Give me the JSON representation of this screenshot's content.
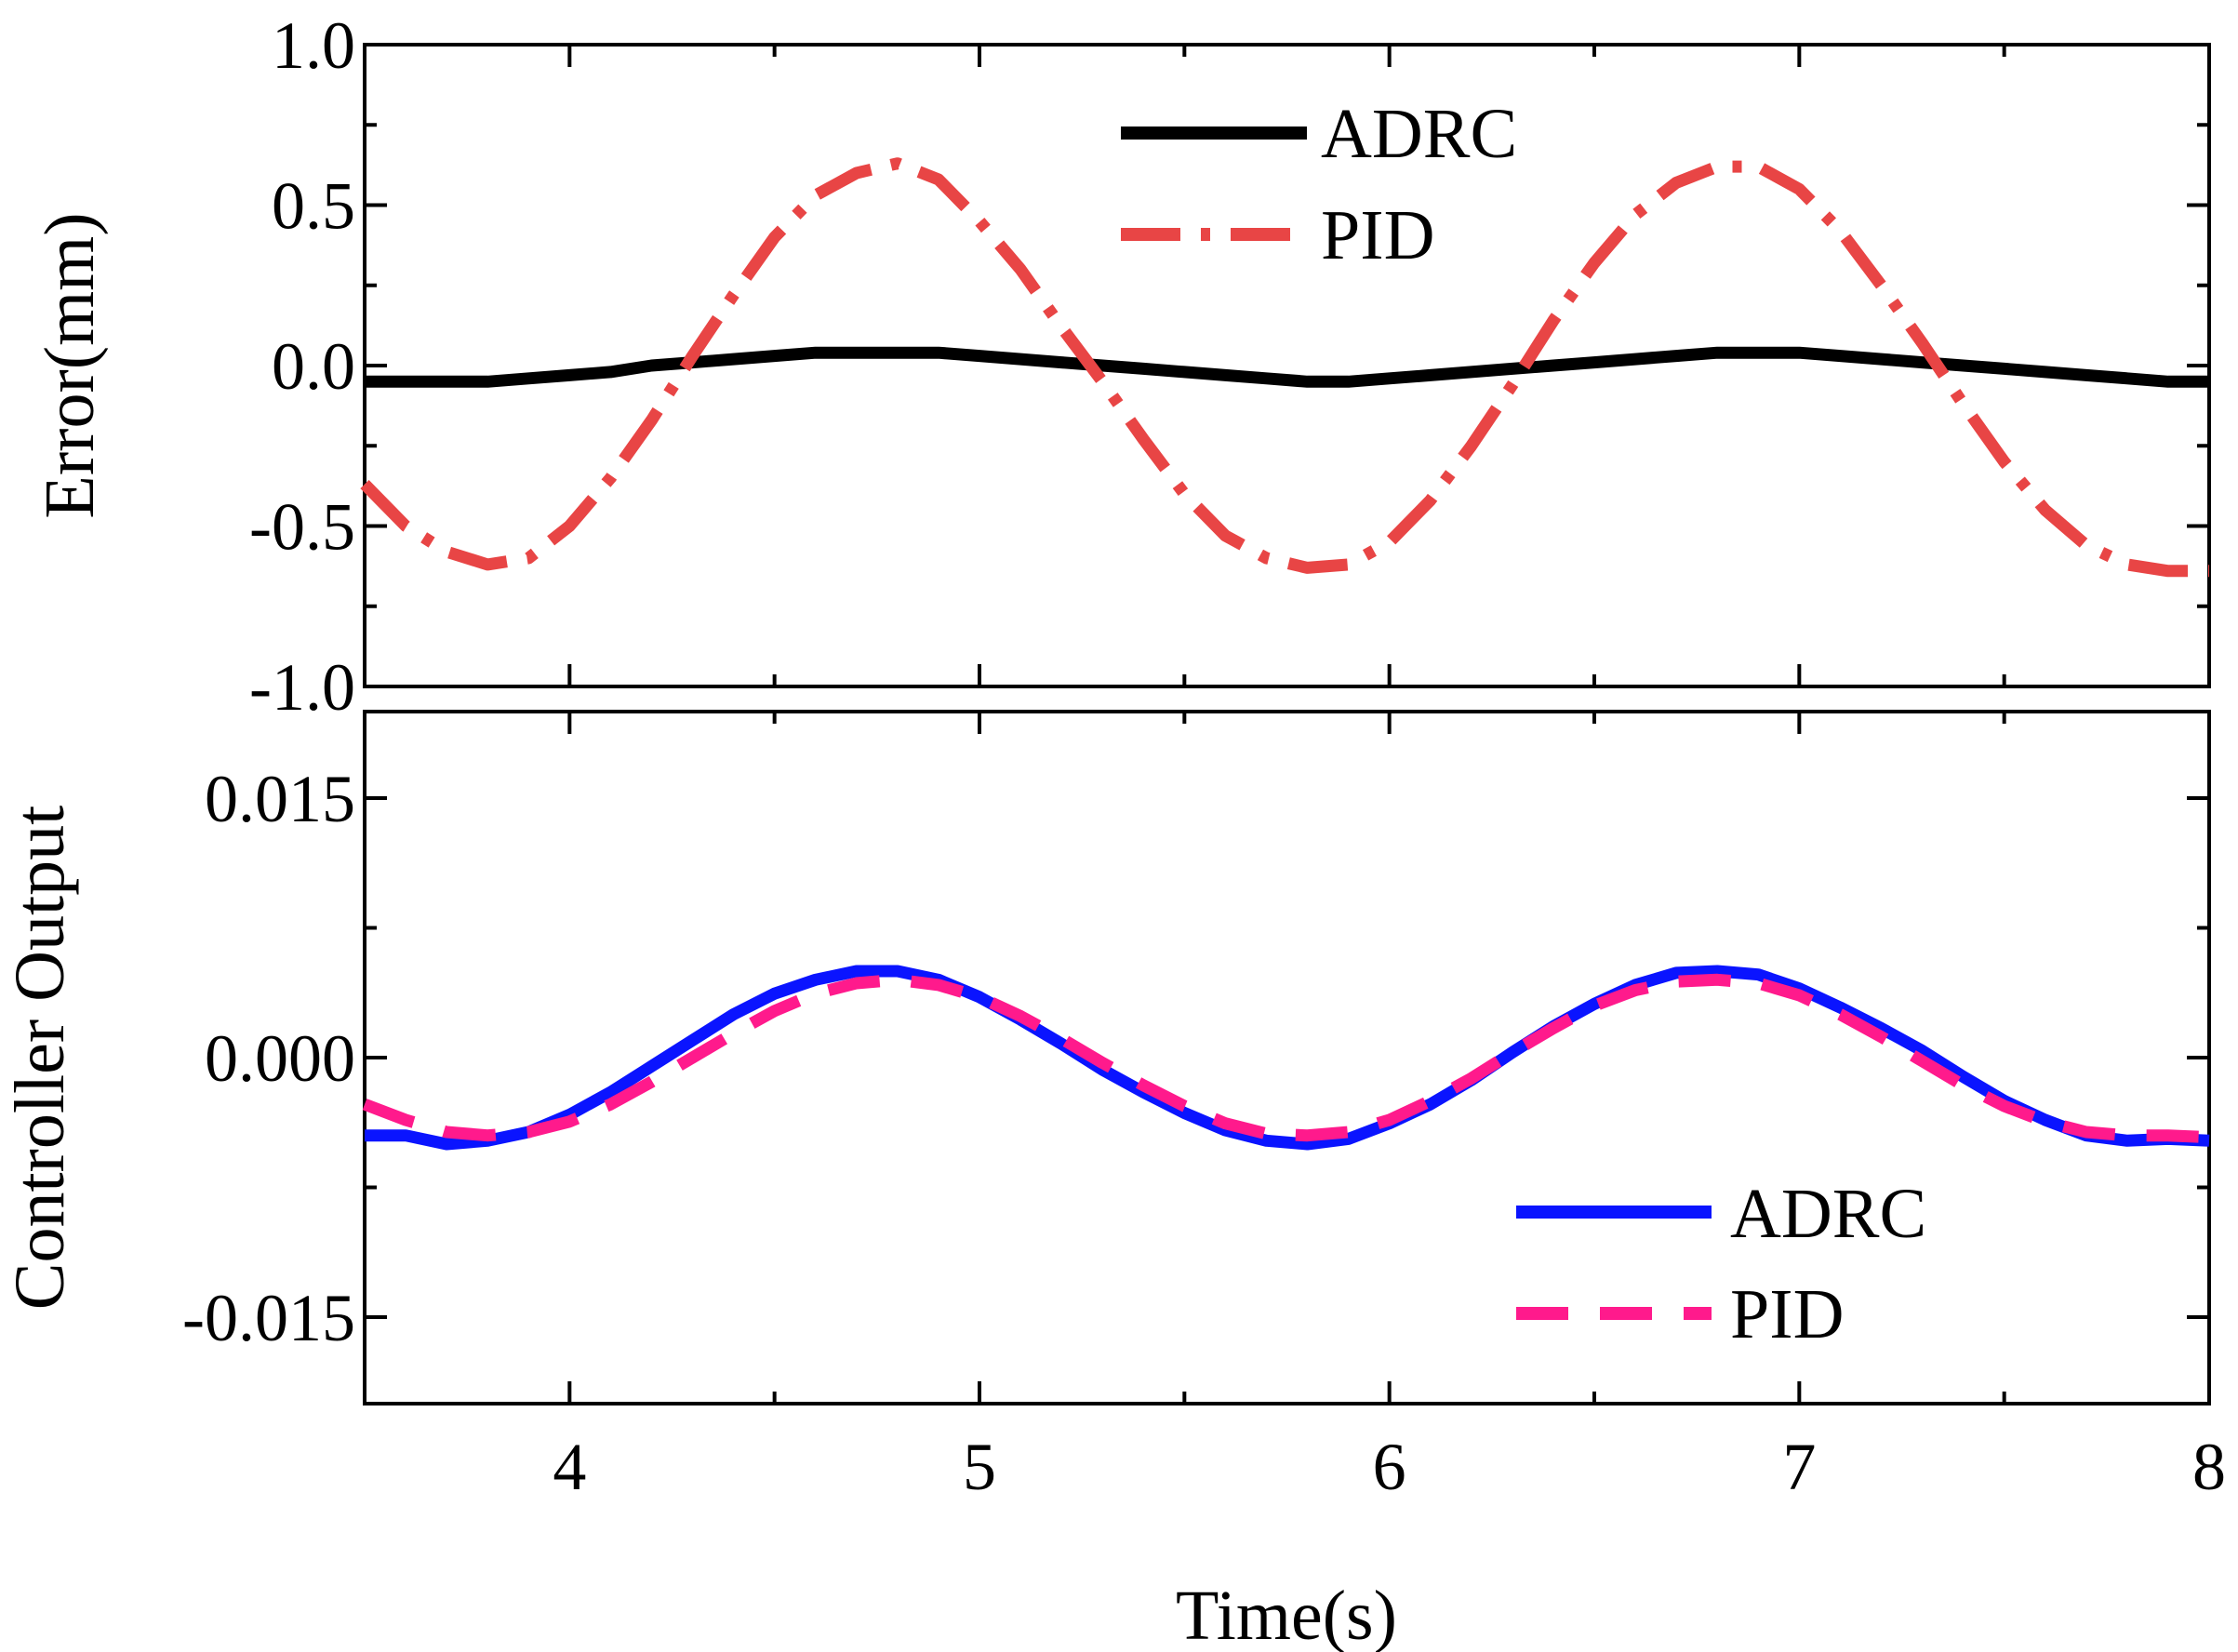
{
  "chart_data": [
    {
      "type": "line",
      "panel": "top",
      "ylabel": "Error(mm)",
      "xlim": [
        3.5,
        8
      ],
      "ylim": [
        -1.0,
        1.0
      ],
      "yticks": [
        1.0,
        0.5,
        0.0,
        -0.5,
        -1.0
      ],
      "ytick_labels": [
        "1.0",
        "0.5",
        "0.0",
        "-0.5",
        "-1.0"
      ],
      "xticks": [
        4,
        5,
        6,
        7,
        8
      ],
      "legend": {
        "placement": "top-center",
        "entries": [
          "ADRC",
          "PID"
        ]
      },
      "series": [
        {
          "name": "ADRC",
          "color": "#000000",
          "style": "solid",
          "x": [
            3.5,
            3.6,
            3.7,
            3.8,
            3.9,
            4.0,
            4.1,
            4.2,
            4.3,
            4.4,
            4.5,
            4.6,
            4.7,
            4.8,
            4.9,
            5.0,
            5.1,
            5.2,
            5.3,
            5.4,
            5.5,
            5.6,
            5.7,
            5.8,
            5.9,
            6.0,
            6.1,
            6.2,
            6.3,
            6.4,
            6.5,
            6.6,
            6.7,
            6.8,
            6.9,
            7.0,
            7.1,
            7.2,
            7.3,
            7.4,
            7.5,
            7.6,
            7.7,
            7.8,
            7.9,
            8.0
          ],
          "values": [
            -0.05,
            -0.05,
            -0.05,
            -0.05,
            -0.04,
            -0.03,
            -0.02,
            0.0,
            0.01,
            0.02,
            0.03,
            0.04,
            0.04,
            0.04,
            0.04,
            0.03,
            0.02,
            0.01,
            0.0,
            -0.01,
            -0.02,
            -0.03,
            -0.04,
            -0.05,
            -0.05,
            -0.04,
            -0.03,
            -0.02,
            -0.01,
            0.0,
            0.01,
            0.02,
            0.03,
            0.04,
            0.04,
            0.04,
            0.03,
            0.02,
            0.01,
            0.0,
            -0.01,
            -0.02,
            -0.03,
            -0.04,
            -0.05,
            -0.05
          ]
        },
        {
          "name": "PID",
          "color": "#e84545",
          "style": "dash-dot",
          "x": [
            3.5,
            3.6,
            3.7,
            3.8,
            3.9,
            4.0,
            4.1,
            4.2,
            4.3,
            4.4,
            4.5,
            4.6,
            4.7,
            4.8,
            4.9,
            5.0,
            5.1,
            5.2,
            5.3,
            5.4,
            5.5,
            5.6,
            5.7,
            5.8,
            5.9,
            6.0,
            6.1,
            6.2,
            6.3,
            6.4,
            6.5,
            6.6,
            6.7,
            6.8,
            6.9,
            7.0,
            7.1,
            7.2,
            7.3,
            7.4,
            7.5,
            7.6,
            7.7,
            7.8,
            7.9,
            8.0
          ],
          "values": [
            -0.37,
            -0.5,
            -0.58,
            -0.62,
            -0.6,
            -0.5,
            -0.35,
            -0.17,
            0.03,
            0.22,
            0.4,
            0.53,
            0.6,
            0.63,
            0.58,
            0.45,
            0.3,
            0.12,
            -0.05,
            -0.23,
            -0.4,
            -0.53,
            -0.6,
            -0.63,
            -0.62,
            -0.55,
            -0.42,
            -0.25,
            -0.06,
            0.14,
            0.32,
            0.47,
            0.57,
            0.62,
            0.62,
            0.55,
            0.42,
            0.25,
            0.07,
            -0.12,
            -0.3,
            -0.45,
            -0.56,
            -0.62,
            -0.64,
            -0.64
          ]
        }
      ]
    },
    {
      "type": "line",
      "panel": "bottom",
      "title": "",
      "xlabel": "Time(s)",
      "ylabel": "Controller Output",
      "xlim": [
        3.5,
        8
      ],
      "ylim": [
        -0.02,
        0.02
      ],
      "yticks": [
        0.015,
        0.0,
        -0.015
      ],
      "ytick_labels": [
        "0.015",
        "0.000",
        "-0.015"
      ],
      "xticks": [
        4,
        5,
        6,
        7,
        8
      ],
      "xtick_labels": [
        "4",
        "5",
        "6",
        "7",
        "8"
      ],
      "legend": {
        "placement": "bottom-right",
        "entries": [
          "ADRC",
          "PID"
        ]
      },
      "series": [
        {
          "name": "ADRC",
          "color": "#0a14ff",
          "style": "solid",
          "x": [
            3.5,
            3.6,
            3.7,
            3.8,
            3.9,
            4.0,
            4.1,
            4.2,
            4.3,
            4.4,
            4.5,
            4.6,
            4.7,
            4.8,
            4.9,
            5.0,
            5.1,
            5.2,
            5.3,
            5.4,
            5.5,
            5.6,
            5.7,
            5.8,
            5.9,
            6.0,
            6.1,
            6.2,
            6.3,
            6.4,
            6.5,
            6.6,
            6.7,
            6.8,
            6.9,
            7.0,
            7.1,
            7.2,
            7.3,
            7.4,
            7.5,
            7.6,
            7.7,
            7.8,
            7.9,
            8.0
          ],
          "values": [
            -0.0045,
            -0.0045,
            -0.005,
            -0.0048,
            -0.0043,
            -0.0033,
            -0.002,
            -0.0005,
            0.001,
            0.0025,
            0.0037,
            0.0045,
            0.005,
            0.005,
            0.0045,
            0.0035,
            0.0022,
            0.0008,
            -0.0007,
            -0.002,
            -0.0032,
            -0.0042,
            -0.0048,
            -0.005,
            -0.0047,
            -0.0038,
            -0.0027,
            -0.0013,
            0.0003,
            0.0018,
            0.0031,
            0.0042,
            0.0049,
            0.005,
            0.0048,
            0.004,
            0.0029,
            0.0017,
            0.0004,
            -0.0011,
            -0.0025,
            -0.0036,
            -0.0045,
            -0.0048,
            -0.0047,
            -0.0048
          ]
        },
        {
          "name": "PID",
          "color": "#ff1a8c",
          "style": "dashed",
          "x": [
            3.5,
            3.6,
            3.7,
            3.8,
            3.9,
            4.0,
            4.1,
            4.2,
            4.3,
            4.4,
            4.5,
            4.6,
            4.7,
            4.8,
            4.9,
            5.0,
            5.1,
            5.2,
            5.3,
            5.4,
            5.5,
            5.6,
            5.7,
            5.8,
            5.9,
            6.0,
            6.1,
            6.2,
            6.3,
            6.4,
            6.5,
            6.6,
            6.7,
            6.8,
            6.9,
            7.0,
            7.1,
            7.2,
            7.3,
            7.4,
            7.5,
            7.6,
            7.7,
            7.8,
            7.9,
            8.0
          ],
          "values": [
            -0.0027,
            -0.0036,
            -0.0043,
            -0.0045,
            -0.0043,
            -0.0037,
            -0.0027,
            -0.0014,
            0.0,
            0.0014,
            0.0027,
            0.0037,
            0.0043,
            0.0045,
            0.0042,
            0.0035,
            0.0024,
            0.0011,
            -0.0003,
            -0.0016,
            -0.0028,
            -0.0038,
            -0.0044,
            -0.0045,
            -0.0043,
            -0.0036,
            -0.0025,
            -0.0012,
            0.0003,
            0.0017,
            0.003,
            0.0039,
            0.0044,
            0.0045,
            0.0043,
            0.0036,
            0.0025,
            0.0012,
            -0.0002,
            -0.0016,
            -0.0028,
            -0.0037,
            -0.0043,
            -0.0045,
            -0.0045,
            -0.0046
          ]
        }
      ]
    }
  ]
}
